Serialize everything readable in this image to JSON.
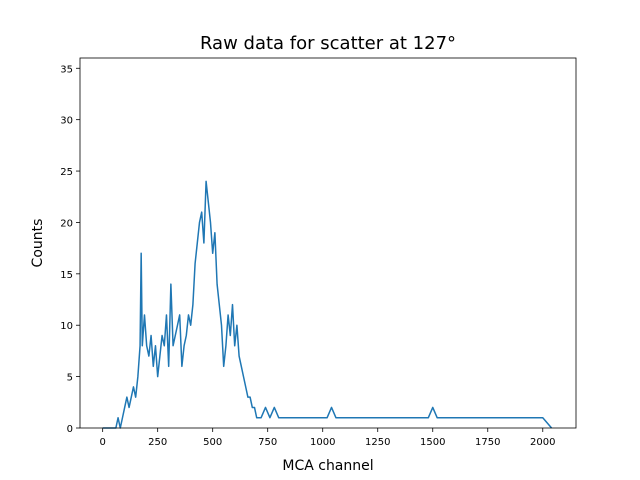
{
  "chart_data": {
    "type": "line",
    "title": "Raw data for scatter at 127°",
    "xlabel": "MCA channel",
    "ylabel": "Counts",
    "xlim": [
      -103,
      2151
    ],
    "ylim": [
      0,
      36
    ],
    "xticks": [
      0,
      250,
      500,
      750,
      1000,
      1250,
      1500,
      1750,
      2000
    ],
    "yticks": [
      0,
      5,
      10,
      15,
      20,
      25,
      30,
      35
    ],
    "grid": false,
    "line_color": "#1f77b4",
    "series": [
      {
        "name": "",
        "x": [
          0,
          10,
          20,
          30,
          40,
          50,
          60,
          70,
          80,
          90,
          100,
          110,
          120,
          130,
          140,
          150,
          160,
          170,
          175,
          180,
          190,
          200,
          210,
          220,
          230,
          240,
          250,
          260,
          270,
          280,
          290,
          300,
          310,
          320,
          330,
          340,
          350,
          360,
          370,
          380,
          390,
          400,
          410,
          420,
          430,
          440,
          450,
          460,
          470,
          480,
          490,
          500,
          510,
          520,
          530,
          540,
          550,
          560,
          570,
          580,
          590,
          600,
          610,
          620,
          630,
          640,
          650,
          660,
          670,
          680,
          690,
          700,
          720,
          740,
          760,
          780,
          800,
          820,
          840,
          860,
          880,
          900,
          920,
          940,
          960,
          980,
          1000,
          1020,
          1040,
          1060,
          1080,
          1100,
          1120,
          1140,
          1160,
          1180,
          1200,
          1240,
          1280,
          1320,
          1360,
          1400,
          1440,
          1480,
          1500,
          1520,
          1560,
          1600,
          1650,
          1700,
          1750,
          1800,
          1850,
          1900,
          1950,
          2000,
          2040
        ],
        "y": [
          0,
          0,
          0,
          0,
          0,
          0,
          0,
          1,
          0,
          1,
          2,
          3,
          2,
          3,
          4,
          3,
          5,
          8,
          17,
          8,
          11,
          8,
          7,
          9,
          6,
          8,
          5,
          7,
          9,
          8,
          11,
          6,
          14,
          8,
          9,
          10,
          11,
          6,
          8,
          9,
          11,
          10,
          12,
          16,
          18,
          20,
          21,
          18,
          24,
          22,
          20,
          17,
          19,
          14,
          12,
          10,
          6,
          8,
          11,
          9,
          12,
          8,
          10,
          7,
          6,
          5,
          4,
          3,
          3,
          2,
          2,
          1,
          1,
          2,
          1,
          2,
          1,
          1,
          1,
          1,
          1,
          1,
          1,
          1,
          1,
          1,
          1,
          1,
          2,
          1,
          1,
          1,
          1,
          1,
          1,
          1,
          1,
          1,
          1,
          1,
          1,
          1,
          1,
          1,
          2,
          1,
          1,
          1,
          1,
          1,
          1,
          1,
          1,
          1,
          1,
          1,
          0
        ]
      }
    ]
  }
}
